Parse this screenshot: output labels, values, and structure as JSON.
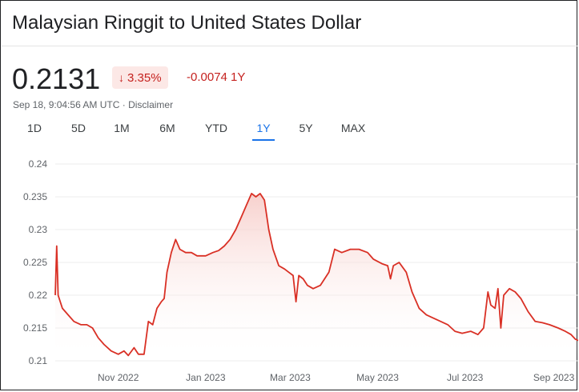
{
  "header": {
    "title": "Malaysian Ringgit to United States Dollar"
  },
  "quote": {
    "price": "0.2131",
    "change_percent": "3.35%",
    "change_arrow_icon": "arrow-down-icon",
    "change_abs": "-0.0074",
    "period": "1Y",
    "timestamp": "Sep 18, 9:04:56 AM UTC",
    "separator": "·",
    "disclaimer": "Disclaimer"
  },
  "tabs": [
    {
      "label": "1D"
    },
    {
      "label": "5D"
    },
    {
      "label": "1M"
    },
    {
      "label": "6M"
    },
    {
      "label": "YTD"
    },
    {
      "label": "1Y",
      "active": true
    },
    {
      "label": "5Y"
    },
    {
      "label": "MAX"
    }
  ],
  "colors": {
    "line": "#d93025",
    "fill_top": "#f6c8c4",
    "grid": "#ececec",
    "active_tab": "#1a73e8",
    "negative": "#c5221f"
  },
  "chart_data": {
    "type": "area",
    "title": "",
    "xlabel": "",
    "ylabel": "",
    "ylim": [
      0.21,
      0.24
    ],
    "yticks": [
      0.24,
      0.235,
      0.23,
      0.225,
      0.22,
      0.215,
      0.21
    ],
    "ytick_labels": [
      "0.24",
      "0.235",
      "0.23",
      "0.225",
      "0.22",
      "0.215",
      "0.21"
    ],
    "xlim": [
      "2022-09-18",
      "2023-09-18"
    ],
    "xticks": [
      "2022-11-01",
      "2023-01-01",
      "2023-03-01",
      "2023-05-01",
      "2023-07-01",
      "2023-09-01"
    ],
    "xtick_labels": [
      "Nov 2022",
      "Jan 2023",
      "Mar 2023",
      "May 2023",
      "Jul 2023",
      "Sep 2023"
    ],
    "grid": true,
    "series": [
      {
        "points": [
          [
            "2022-09-18",
            0.22
          ],
          [
            "2022-09-19",
            0.2275
          ],
          [
            "2022-09-20",
            0.22
          ],
          [
            "2022-09-23",
            0.218
          ],
          [
            "2022-09-27",
            0.217
          ],
          [
            "2022-10-01",
            0.216
          ],
          [
            "2022-10-06",
            0.2155
          ],
          [
            "2022-10-10",
            0.2155
          ],
          [
            "2022-10-14",
            0.215
          ],
          [
            "2022-10-18",
            0.2135
          ],
          [
            "2022-10-22",
            0.2125
          ],
          [
            "2022-10-27",
            0.2115
          ],
          [
            "2022-11-01",
            0.211
          ],
          [
            "2022-11-05",
            0.2115
          ],
          [
            "2022-11-08",
            0.2108
          ],
          [
            "2022-11-12",
            0.212
          ],
          [
            "2022-11-15",
            0.211
          ],
          [
            "2022-11-19",
            0.211
          ],
          [
            "2022-11-22",
            0.216
          ],
          [
            "2022-11-25",
            0.2155
          ],
          [
            "2022-11-28",
            0.218
          ],
          [
            "2022-12-01",
            0.219
          ],
          [
            "2022-12-03",
            0.2195
          ],
          [
            "2022-12-05",
            0.2235
          ],
          [
            "2022-12-08",
            0.2265
          ],
          [
            "2022-12-11",
            0.2285
          ],
          [
            "2022-12-14",
            0.227
          ],
          [
            "2022-12-18",
            0.2265
          ],
          [
            "2022-12-22",
            0.2265
          ],
          [
            "2022-12-26",
            0.226
          ],
          [
            "2023-01-01",
            0.226
          ],
          [
            "2023-01-06",
            0.2265
          ],
          [
            "2023-01-10",
            0.2268
          ],
          [
            "2023-01-14",
            0.2275
          ],
          [
            "2023-01-18",
            0.2285
          ],
          [
            "2023-01-22",
            0.23
          ],
          [
            "2023-01-26",
            0.232
          ],
          [
            "2023-01-30",
            0.234
          ],
          [
            "2023-02-02",
            0.2355
          ],
          [
            "2023-02-05",
            0.235
          ],
          [
            "2023-02-08",
            0.2355
          ],
          [
            "2023-02-11",
            0.2345
          ],
          [
            "2023-02-14",
            0.23
          ],
          [
            "2023-02-17",
            0.227
          ],
          [
            "2023-02-21",
            0.2245
          ],
          [
            "2023-02-25",
            0.224
          ],
          [
            "2023-02-28",
            0.2235
          ],
          [
            "2023-03-03",
            0.223
          ],
          [
            "2023-03-05",
            0.219
          ],
          [
            "2023-03-07",
            0.223
          ],
          [
            "2023-03-10",
            0.2225
          ],
          [
            "2023-03-13",
            0.2215
          ],
          [
            "2023-03-17",
            0.221
          ],
          [
            "2023-03-22",
            0.2215
          ],
          [
            "2023-03-28",
            0.2235
          ],
          [
            "2023-04-01",
            0.227
          ],
          [
            "2023-04-06",
            0.2265
          ],
          [
            "2023-04-12",
            0.227
          ],
          [
            "2023-04-18",
            0.227
          ],
          [
            "2023-04-24",
            0.2265
          ],
          [
            "2023-04-28",
            0.2255
          ],
          [
            "2023-05-04",
            0.2248
          ],
          [
            "2023-05-08",
            0.2245
          ],
          [
            "2023-05-10",
            0.2225
          ],
          [
            "2023-05-12",
            0.2245
          ],
          [
            "2023-05-16",
            0.225
          ],
          [
            "2023-05-21",
            0.2235
          ],
          [
            "2023-05-25",
            0.2205
          ],
          [
            "2023-05-30",
            0.218
          ],
          [
            "2023-06-04",
            0.217
          ],
          [
            "2023-06-09",
            0.2165
          ],
          [
            "2023-06-14",
            0.216
          ],
          [
            "2023-06-19",
            0.2155
          ],
          [
            "2023-06-24",
            0.2145
          ],
          [
            "2023-06-29",
            0.2142
          ],
          [
            "2023-07-05",
            0.2145
          ],
          [
            "2023-07-10",
            0.214
          ],
          [
            "2023-07-14",
            0.215
          ],
          [
            "2023-07-17",
            0.2205
          ],
          [
            "2023-07-19",
            0.2185
          ],
          [
            "2023-07-22",
            0.218
          ],
          [
            "2023-07-24",
            0.221
          ],
          [
            "2023-07-26",
            0.215
          ],
          [
            "2023-07-28",
            0.22
          ],
          [
            "2023-08-01",
            0.221
          ],
          [
            "2023-08-05",
            0.2205
          ],
          [
            "2023-08-09",
            0.2195
          ],
          [
            "2023-08-14",
            0.2175
          ],
          [
            "2023-08-19",
            0.216
          ],
          [
            "2023-08-24",
            0.2158
          ],
          [
            "2023-08-29",
            0.2155
          ],
          [
            "2023-09-04",
            0.215
          ],
          [
            "2023-09-09",
            0.2145
          ],
          [
            "2023-09-13",
            0.214
          ],
          [
            "2023-09-16",
            0.2133
          ],
          [
            "2023-09-18",
            0.2131
          ]
        ]
      }
    ]
  }
}
